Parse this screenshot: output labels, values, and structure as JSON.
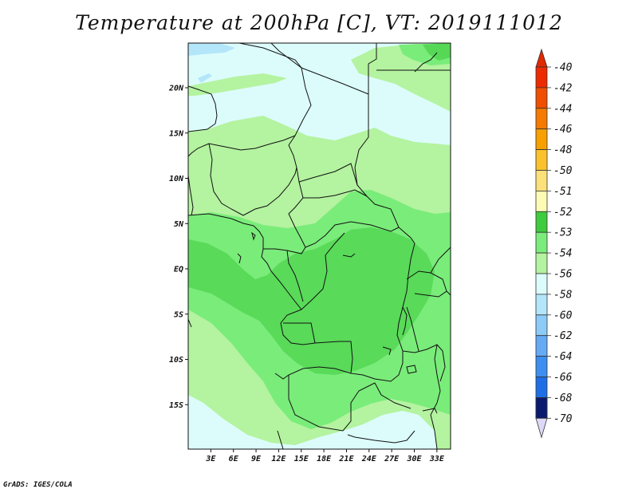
{
  "title": "Temperature at 200hPa [C], VT: 2019111012",
  "footer": "GrADS: IGES/COLA",
  "colors": {
    "background_field": "#dcfcfc",
    "border_lines": "#111111"
  },
  "map": {
    "lat_labels": [
      {
        "lat": 20,
        "label": "20N"
      },
      {
        "lat": 15,
        "label": "15N"
      },
      {
        "lat": 10,
        "label": "10N"
      },
      {
        "lat": 5,
        "label": "5N"
      },
      {
        "lat": 0,
        "label": "EQ"
      },
      {
        "lat": -5,
        "label": "5S"
      },
      {
        "lat": -10,
        "label": "10S"
      },
      {
        "lat": -15,
        "label": "15S"
      }
    ],
    "lon_labels": [
      {
        "lon": 3,
        "label": "3E"
      },
      {
        "lon": 6,
        "label": "6E"
      },
      {
        "lon": 9,
        "label": "9E"
      },
      {
        "lon": 12,
        "label": "12E"
      },
      {
        "lon": 15,
        "label": "15E"
      },
      {
        "lon": 18,
        "label": "18E"
      },
      {
        "lon": 21,
        "label": "21E"
      },
      {
        "lon": 24,
        "label": "24E"
      },
      {
        "lon": 27,
        "label": "27E"
      },
      {
        "lon": 30,
        "label": "30E"
      },
      {
        "lon": 33,
        "label": "33E"
      }
    ]
  },
  "legend": {
    "entries": [
      {
        "label": "-40",
        "color": "#ee2a00"
      },
      {
        "label": "-42",
        "color": "#f04e00"
      },
      {
        "label": "-44",
        "color": "#f57a00"
      },
      {
        "label": "-46",
        "color": "#f8a000"
      },
      {
        "label": "-48",
        "color": "#fac22c"
      },
      {
        "label": "-50",
        "color": "#fce07a"
      },
      {
        "label": "-51",
        "color": "#fdfbb4"
      },
      {
        "label": "-52",
        "color": "#3ecc3e"
      },
      {
        "label": "-53",
        "color": "#7aec7a"
      },
      {
        "label": "-54",
        "color": "#b4f3a0"
      },
      {
        "label": "-56",
        "color": "#dcfcfc"
      },
      {
        "label": "-58",
        "color": "#b4e6fa"
      },
      {
        "label": "-60",
        "color": "#8ccaf8"
      },
      {
        "label": "-62",
        "color": "#64aaf5"
      },
      {
        "label": "-64",
        "color": "#3c8ef0"
      },
      {
        "label": "-66",
        "color": "#1e6ee6"
      },
      {
        "label": "-68",
        "color": "#0c50c8"
      },
      {
        "label": "-70",
        "color": "#0a2a96"
      }
    ],
    "top_color": "#e02a00",
    "mid_color": "#0a1a6e",
    "bottom_color": "#ddd8f6"
  }
}
